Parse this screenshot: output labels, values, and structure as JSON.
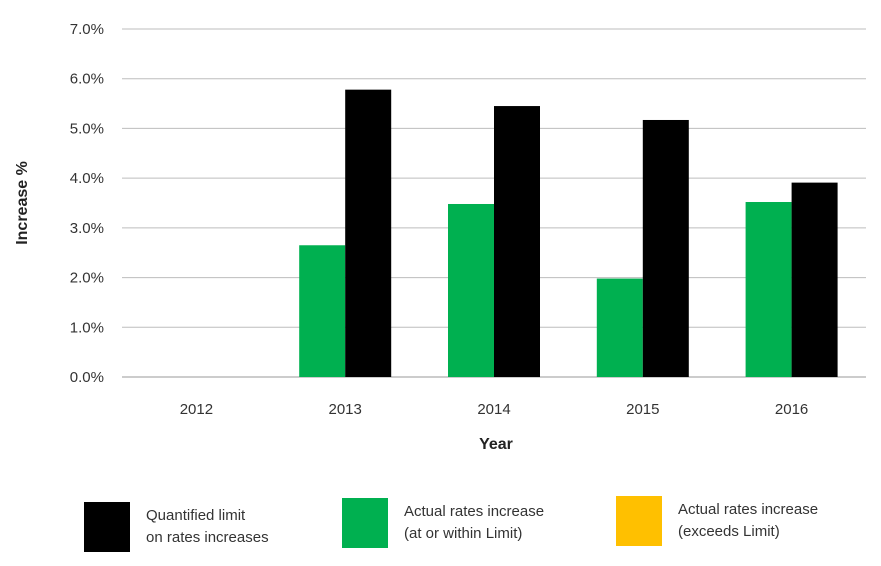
{
  "chart_data": {
    "type": "bar",
    "categories": [
      "2012",
      "2013",
      "2014",
      "2015",
      "2016"
    ],
    "series": [
      {
        "name": "Actual rates increase\n(at or within Limit)",
        "color": "#00B050",
        "values": [
          null,
          2.65,
          3.48,
          1.98,
          3.52
        ]
      },
      {
        "name": "Quantified limit\non rates increases",
        "color": "#000000",
        "values": [
          null,
          5.78,
          5.45,
          5.17,
          3.91
        ]
      },
      {
        "name": "Actual rates increase\n (exceeds Limit)",
        "color": "#FFC000",
        "values": [
          null,
          null,
          null,
          null,
          null
        ]
      }
    ],
    "xlabel": "Year",
    "ylabel": "Increase %",
    "ylim": [
      0,
      7
    ],
    "yticks": [
      "0.0%",
      "1.0%",
      "2.0%",
      "3.0%",
      "4.0%",
      "5.0%",
      "6.0%",
      "7.0%"
    ],
    "grid": true,
    "legend_position": "bottom"
  },
  "legend": {
    "limit_label": "Quantified limit\non rates increases",
    "within_label": "Actual rates increase\n(at or within Limit)",
    "exceeds_label": "Actual rates increase\n (exceeds Limit)"
  }
}
